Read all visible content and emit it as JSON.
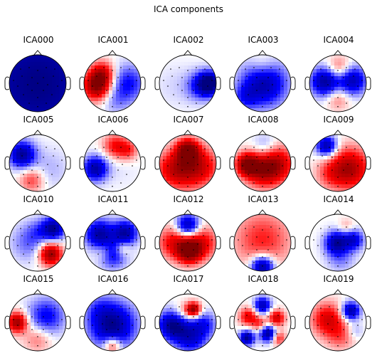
{
  "chart_data": {
    "type": "heatmap",
    "title": "ICA components",
    "colormap": [
      "#000080",
      "#0000ff",
      "#ffffff",
      "#ff0000",
      "#800000"
    ],
    "components": [
      {
        "name": "ICA000",
        "blobs": [
          [
            0.0,
            0.0,
            2.0,
            -0.98
          ]
        ]
      },
      {
        "name": "ICA001",
        "blobs": [
          [
            -0.55,
            0.1,
            0.35,
            0.95
          ],
          [
            -0.35,
            -0.35,
            0.3,
            0.6
          ],
          [
            0.55,
            0.0,
            0.45,
            -0.5
          ],
          [
            0.1,
            0.6,
            0.35,
            -0.2
          ]
        ]
      },
      {
        "name": "ICA002",
        "blobs": [
          [
            0.78,
            0.0,
            0.28,
            -1.0
          ],
          [
            0.45,
            0.1,
            0.35,
            -0.45
          ],
          [
            -0.4,
            0.1,
            0.55,
            -0.08
          ]
        ]
      },
      {
        "name": "ICA003",
        "blobs": [
          [
            0.05,
            0.0,
            0.55,
            -0.85
          ],
          [
            0.0,
            -0.6,
            0.35,
            0.25
          ],
          [
            -0.6,
            0.5,
            0.3,
            -0.35
          ]
        ]
      },
      {
        "name": "ICA004",
        "blobs": [
          [
            -0.45,
            -0.05,
            0.35,
            -0.9
          ],
          [
            0.5,
            -0.1,
            0.35,
            -0.8
          ],
          [
            0.0,
            0.5,
            0.3,
            0.3
          ],
          [
            0.05,
            -0.5,
            0.3,
            0.4
          ]
        ]
      },
      {
        "name": "ICA005",
        "blobs": [
          [
            -0.55,
            -0.3,
            0.32,
            -0.9
          ],
          [
            -0.2,
            0.6,
            0.3,
            0.4
          ],
          [
            0.4,
            0.2,
            0.5,
            -0.15
          ]
        ]
      },
      {
        "name": "ICA006",
        "blobs": [
          [
            -0.6,
            0.2,
            0.3,
            -0.85
          ],
          [
            0.1,
            -0.6,
            0.3,
            0.5
          ],
          [
            0.55,
            -0.45,
            0.25,
            0.4
          ],
          [
            0.3,
            0.2,
            0.5,
            -0.05
          ]
        ]
      },
      {
        "name": "ICA007",
        "blobs": [
          [
            0.0,
            -0.45,
            0.28,
            0.95
          ],
          [
            -0.5,
            0.2,
            0.45,
            0.55
          ],
          [
            0.5,
            0.1,
            0.45,
            0.5
          ],
          [
            0.0,
            0.3,
            0.5,
            0.35
          ]
        ]
      },
      {
        "name": "ICA008",
        "blobs": [
          [
            -0.55,
            0.05,
            0.28,
            0.95
          ],
          [
            0.5,
            0.05,
            0.45,
            0.75
          ],
          [
            -0.05,
            0.3,
            0.4,
            0.6
          ],
          [
            0.1,
            -0.6,
            0.3,
            -0.25
          ]
        ]
      },
      {
        "name": "ICA009",
        "blobs": [
          [
            -0.4,
            -0.6,
            0.25,
            -0.85
          ],
          [
            0.4,
            0.2,
            0.5,
            0.85
          ],
          [
            -0.3,
            0.4,
            0.35,
            0.25
          ]
        ]
      },
      {
        "name": "ICA010",
        "blobs": [
          [
            0.45,
            0.4,
            0.28,
            0.95
          ],
          [
            0.55,
            -0.5,
            0.28,
            -0.9
          ],
          [
            -0.3,
            0.0,
            0.45,
            -0.3
          ],
          [
            0.0,
            -0.4,
            0.3,
            -0.2
          ]
        ]
      },
      {
        "name": "ICA011",
        "blobs": [
          [
            -0.45,
            -0.3,
            0.35,
            -0.85
          ],
          [
            0.45,
            -0.35,
            0.3,
            -0.85
          ],
          [
            0.0,
            0.4,
            0.35,
            -0.6
          ],
          [
            -0.3,
            0.3,
            0.25,
            0.3
          ],
          [
            0.35,
            0.2,
            0.2,
            0.35
          ]
        ]
      },
      {
        "name": "ICA012",
        "blobs": [
          [
            0.05,
            0.3,
            0.3,
            0.95
          ],
          [
            0.0,
            -0.6,
            0.28,
            -0.85
          ],
          [
            -0.5,
            0.0,
            0.4,
            0.55
          ],
          [
            0.5,
            0.0,
            0.4,
            0.55
          ]
        ]
      },
      {
        "name": "ICA013",
        "blobs": [
          [
            0.0,
            0.85,
            0.28,
            -1.0
          ],
          [
            0.0,
            -0.1,
            0.7,
            0.45
          ]
        ]
      },
      {
        "name": "ICA014",
        "blobs": [
          [
            -0.05,
            0.0,
            0.28,
            -0.85
          ],
          [
            0.55,
            -0.1,
            0.25,
            -0.65
          ],
          [
            0.3,
            -0.55,
            0.2,
            0.2
          ],
          [
            0.1,
            0.55,
            0.35,
            -0.25
          ]
        ]
      },
      {
        "name": "ICA015",
        "blobs": [
          [
            -0.72,
            0.0,
            0.25,
            0.9
          ],
          [
            0.3,
            -0.2,
            0.45,
            -0.55
          ],
          [
            0.0,
            0.55,
            0.35,
            0.3
          ]
        ]
      },
      {
        "name": "ICA016",
        "blobs": [
          [
            0.0,
            0.1,
            0.55,
            -0.95
          ],
          [
            0.0,
            0.8,
            0.22,
            0.6
          ],
          [
            -0.5,
            -0.5,
            0.35,
            -0.2
          ]
        ]
      },
      {
        "name": "ICA017",
        "blobs": [
          [
            0.2,
            -0.45,
            0.18,
            0.95
          ],
          [
            -0.55,
            0.1,
            0.35,
            -0.9
          ],
          [
            0.1,
            0.5,
            0.4,
            -0.7
          ],
          [
            0.6,
            0.05,
            0.3,
            -0.4
          ],
          [
            -0.15,
            -0.35,
            0.25,
            0.25
          ]
        ]
      },
      {
        "name": "ICA018",
        "blobs": [
          [
            -0.55,
            0.55,
            0.18,
            -0.95
          ],
          [
            0.2,
            0.4,
            0.2,
            -0.95
          ],
          [
            0.0,
            -0.6,
            0.2,
            -0.8
          ],
          [
            0.5,
            -0.15,
            0.2,
            0.7
          ],
          [
            -0.5,
            -0.2,
            0.22,
            0.6
          ],
          [
            -0.1,
            0.05,
            0.18,
            0.4
          ],
          [
            0.55,
            0.55,
            0.18,
            0.5
          ]
        ]
      },
      {
        "name": "ICA019",
        "blobs": [
          [
            0.45,
            -0.4,
            0.22,
            -0.9
          ],
          [
            -0.35,
            -0.1,
            0.4,
            0.65
          ],
          [
            0.1,
            0.5,
            0.35,
            0.3
          ],
          [
            0.6,
            0.3,
            0.2,
            -0.2
          ]
        ]
      }
    ]
  }
}
